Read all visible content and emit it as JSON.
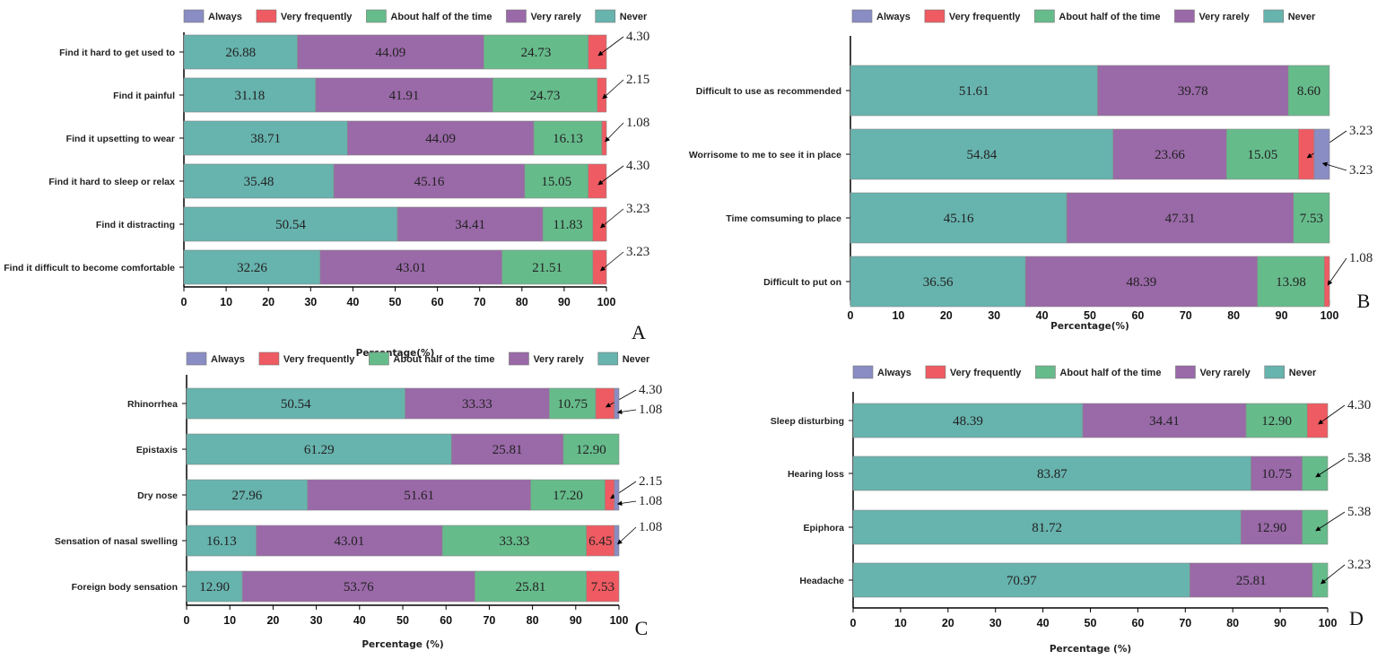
{
  "colors": {
    "Never": "#67b3ae",
    "Very rarely": "#9a69a8",
    "About half of the time": "#66bb8b",
    "Very frequently": "#ef5b62",
    "Always": "#8a8cc4"
  },
  "legend": [
    "Always",
    "Very frequently",
    "About half of the time",
    "Very rarely",
    "Never"
  ],
  "chart_data": [
    {
      "type": "bar",
      "orientation": "horizontal",
      "stacked": true,
      "panel_label": "A",
      "xlabel": "Percentage(%)",
      "xlim": [
        0,
        100
      ],
      "xticks": [
        0,
        10,
        20,
        30,
        40,
        50,
        60,
        70,
        80,
        90,
        100
      ],
      "series_order": [
        "Never",
        "Very rarely",
        "About half of the time",
        "Very frequently",
        "Always"
      ],
      "rows": [
        {
          "label": "Find it hard to get used to",
          "values": [
            26.88,
            44.09,
            24.73,
            4.3,
            0
          ]
        },
        {
          "label": "Find it painful",
          "values": [
            31.18,
            41.91,
            24.73,
            2.15,
            0
          ]
        },
        {
          "label": "Find it upsetting to wear",
          "values": [
            38.71,
            44.09,
            16.13,
            1.08,
            0
          ]
        },
        {
          "label": "Find it hard to sleep or relax",
          "values": [
            35.48,
            45.16,
            15.05,
            4.3,
            0
          ]
        },
        {
          "label": "Find it distracting",
          "values": [
            50.54,
            34.41,
            11.83,
            3.23,
            0
          ]
        },
        {
          "label": "Find it difficult to become comfortable",
          "values": [
            32.26,
            43.01,
            21.51,
            3.23,
            0
          ]
        }
      ]
    },
    {
      "type": "bar",
      "orientation": "horizontal",
      "stacked": true,
      "panel_label": "B",
      "xlabel": "Percentage(%)",
      "xlim": [
        0,
        100
      ],
      "xticks": [
        0,
        10,
        20,
        30,
        40,
        50,
        60,
        70,
        80,
        90,
        100
      ],
      "series_order": [
        "Never",
        "Very rarely",
        "About half of the time",
        "Very frequently",
        "Always"
      ],
      "rows": [
        {
          "label": "Difficult to use as recommended",
          "values": [
            51.61,
            39.78,
            8.6,
            0,
            0
          ]
        },
        {
          "label": "Worrisome to me to see it in place",
          "values": [
            54.84,
            23.66,
            15.05,
            3.23,
            3.23
          ]
        },
        {
          "label": "Time comsuming to place",
          "values": [
            45.16,
            47.31,
            7.53,
            0,
            0
          ]
        },
        {
          "label": "Difficult to put on",
          "values": [
            36.56,
            48.39,
            13.98,
            1.08,
            0
          ]
        }
      ]
    },
    {
      "type": "bar",
      "orientation": "horizontal",
      "stacked": true,
      "panel_label": "C",
      "xlabel": "Percentage  (%)",
      "xlim": [
        0,
        100
      ],
      "xticks": [
        0,
        10,
        20,
        30,
        40,
        50,
        60,
        70,
        80,
        90,
        100
      ],
      "series_order": [
        "Never",
        "Very rarely",
        "About half of the time",
        "Very frequently",
        "Always"
      ],
      "rows": [
        {
          "label": "Rhinorrhea",
          "values": [
            50.54,
            33.33,
            10.75,
            4.3,
            1.08
          ]
        },
        {
          "label": "Epistaxis",
          "values": [
            61.29,
            25.81,
            12.9,
            0,
            0
          ]
        },
        {
          "label": "Dry nose",
          "values": [
            27.96,
            51.61,
            17.2,
            2.15,
            1.08
          ]
        },
        {
          "label": "Sensation of nasal swelling",
          "values": [
            16.13,
            43.01,
            33.33,
            6.45,
            1.08
          ]
        },
        {
          "label": "Foreign body sensation",
          "values": [
            12.9,
            53.76,
            25.81,
            7.53,
            0
          ]
        }
      ]
    },
    {
      "type": "bar",
      "orientation": "horizontal",
      "stacked": true,
      "panel_label": "D",
      "xlabel": "Percentage  (%)",
      "xlim": [
        0,
        100
      ],
      "xticks": [
        0,
        10,
        20,
        30,
        40,
        50,
        60,
        70,
        80,
        90,
        100
      ],
      "series_order": [
        "Never",
        "Very rarely",
        "About half of the time",
        "Very frequently",
        "Always"
      ],
      "rows": [
        {
          "label": "Sleep disturbing",
          "values": [
            48.39,
            34.41,
            12.9,
            4.3,
            0
          ]
        },
        {
          "label": "Hearing loss",
          "values": [
            83.87,
            10.75,
            5.38,
            0,
            0
          ]
        },
        {
          "label": "Epiphora",
          "values": [
            81.72,
            12.9,
            5.38,
            0,
            0
          ]
        },
        {
          "label": "Headache",
          "values": [
            70.97,
            25.81,
            3.23,
            0,
            0
          ]
        }
      ]
    }
  ]
}
